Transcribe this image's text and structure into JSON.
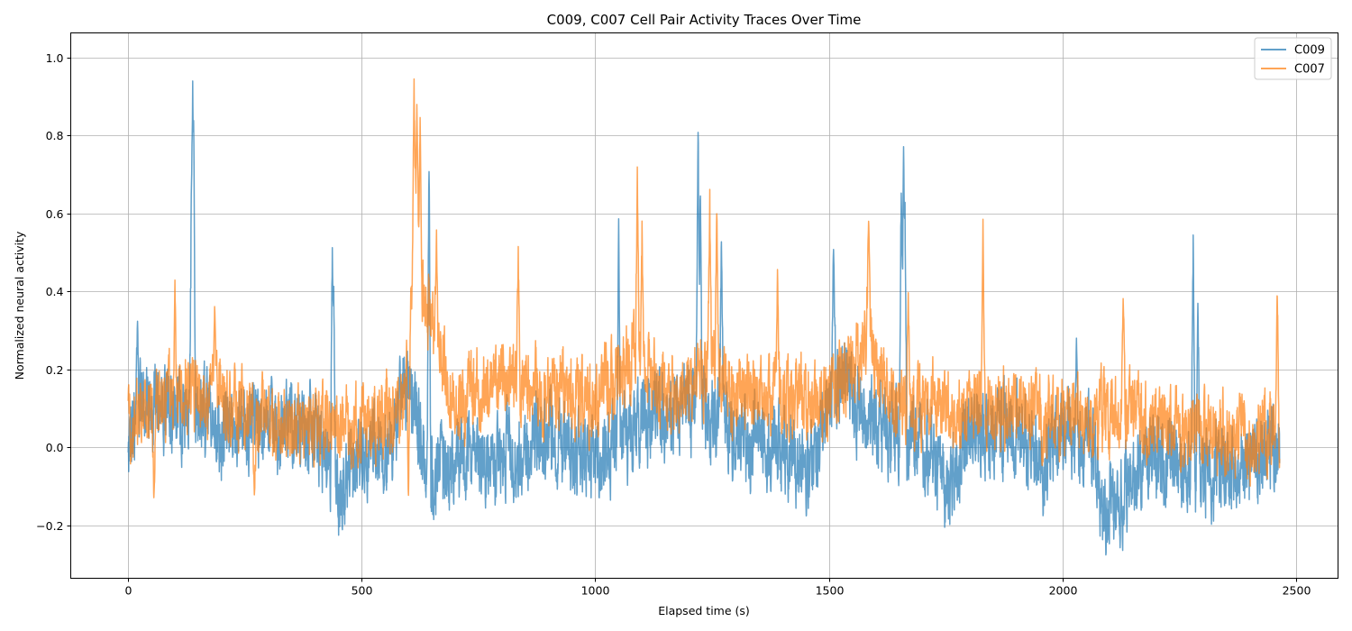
{
  "chart_data": {
    "type": "line",
    "title": "C009, C007 Cell Pair Activity Traces Over Time",
    "xlabel": "Elapsed time (s)",
    "ylabel": "Normalized neural activity",
    "xlim": [
      -123,
      2590
    ],
    "ylim": [
      -0.336,
      1.063
    ],
    "x_ticks": [
      0,
      500,
      1000,
      1500,
      2000,
      2500
    ],
    "y_ticks": [
      -0.2,
      0.0,
      0.2,
      0.4,
      0.6,
      0.8,
      1.0
    ],
    "x_tick_labels": [
      "0",
      "500",
      "1000",
      "1500",
      "2000",
      "2500"
    ],
    "y_tick_labels": [
      "−0.2",
      "0.0",
      "0.2",
      "0.4",
      "0.6",
      "0.8",
      "1.0"
    ],
    "grid": true,
    "legend_position": "top-right",
    "series": [
      {
        "name": "C009",
        "color": "#1f77b4",
        "opacity": 0.7,
        "x_start": 0,
        "x_end": 2465,
        "noise": 0.085,
        "anchors": [
          [
            0,
            0.02
          ],
          [
            40,
            0.12
          ],
          [
            100,
            0.1
          ],
          [
            150,
            0.08
          ],
          [
            200,
            0.04
          ],
          [
            300,
            0.06
          ],
          [
            400,
            0.05
          ],
          [
            450,
            -0.1
          ],
          [
            500,
            -0.03
          ],
          [
            560,
            0.0
          ],
          [
            600,
            0.18
          ],
          [
            640,
            -0.08
          ],
          [
            700,
            -0.04
          ],
          [
            800,
            -0.02
          ],
          [
            900,
            0.03
          ],
          [
            1000,
            -0.04
          ],
          [
            1100,
            0.06
          ],
          [
            1200,
            0.12
          ],
          [
            1300,
            0.03
          ],
          [
            1400,
            0.0
          ],
          [
            1460,
            -0.08
          ],
          [
            1520,
            0.2
          ],
          [
            1600,
            0.04
          ],
          [
            1700,
            0.02
          ],
          [
            1760,
            -0.1
          ],
          [
            1800,
            0.04
          ],
          [
            1900,
            0.05
          ],
          [
            1960,
            -0.05
          ],
          [
            2000,
            0.03
          ],
          [
            2060,
            0.02
          ],
          [
            2090,
            -0.17
          ],
          [
            2150,
            -0.08
          ],
          [
            2200,
            -0.02
          ],
          [
            2300,
            -0.06
          ],
          [
            2400,
            -0.05
          ],
          [
            2465,
            0.0
          ]
        ],
        "peaks": [
          [
            20,
            0.36
          ],
          [
            135,
            0.6
          ],
          [
            138,
            1.0
          ],
          [
            140,
            0.86
          ],
          [
            437,
            0.57
          ],
          [
            440,
            0.42
          ],
          [
            644,
            0.8
          ],
          [
            1050,
            0.61
          ],
          [
            1220,
            0.88
          ],
          [
            1225,
            0.74
          ],
          [
            1270,
            0.6
          ],
          [
            1510,
            0.55
          ],
          [
            1655,
            0.76
          ],
          [
            1660,
            0.9
          ],
          [
            1663,
            0.65
          ],
          [
            2030,
            0.3
          ],
          [
            2280,
            0.6
          ],
          [
            2290,
            0.43
          ]
        ]
      },
      {
        "name": "C007",
        "color": "#ff7f0e",
        "opacity": 0.7,
        "x_start": 0,
        "x_end": 2465,
        "noise": 0.075,
        "anchors": [
          [
            0,
            0.06
          ],
          [
            100,
            0.14
          ],
          [
            200,
            0.12
          ],
          [
            300,
            0.06
          ],
          [
            400,
            0.05
          ],
          [
            500,
            0.06
          ],
          [
            590,
            0.1
          ],
          [
            615,
            0.5
          ],
          [
            650,
            0.3
          ],
          [
            700,
            0.12
          ],
          [
            800,
            0.18
          ],
          [
            850,
            0.16
          ],
          [
            900,
            0.14
          ],
          [
            1000,
            0.12
          ],
          [
            1090,
            0.25
          ],
          [
            1150,
            0.12
          ],
          [
            1250,
            0.2
          ],
          [
            1300,
            0.12
          ],
          [
            1400,
            0.15
          ],
          [
            1500,
            0.12
          ],
          [
            1580,
            0.28
          ],
          [
            1650,
            0.1
          ],
          [
            1700,
            0.12
          ],
          [
            1800,
            0.1
          ],
          [
            1900,
            0.1
          ],
          [
            2000,
            0.07
          ],
          [
            2100,
            0.08
          ],
          [
            2150,
            0.1
          ],
          [
            2200,
            0.05
          ],
          [
            2300,
            0.04
          ],
          [
            2400,
            0.02
          ],
          [
            2465,
            0.06
          ]
        ],
        "peaks": [
          [
            100,
            0.43
          ],
          [
            185,
            0.38
          ],
          [
            612,
            1.0
          ],
          [
            618,
            0.95
          ],
          [
            625,
            0.85
          ],
          [
            660,
            0.57
          ],
          [
            835,
            0.52
          ],
          [
            1090,
            0.75
          ],
          [
            1100,
            0.6
          ],
          [
            1245,
            0.67
          ],
          [
            1260,
            0.65
          ],
          [
            1390,
            0.46
          ],
          [
            1585,
            0.63
          ],
          [
            1670,
            0.42
          ],
          [
            1830,
            0.61
          ],
          [
            2130,
            0.43
          ],
          [
            2460,
            0.44
          ],
          [
            55,
            -0.16
          ],
          [
            270,
            -0.15
          ],
          [
            600,
            -0.17
          ]
        ]
      }
    ]
  }
}
